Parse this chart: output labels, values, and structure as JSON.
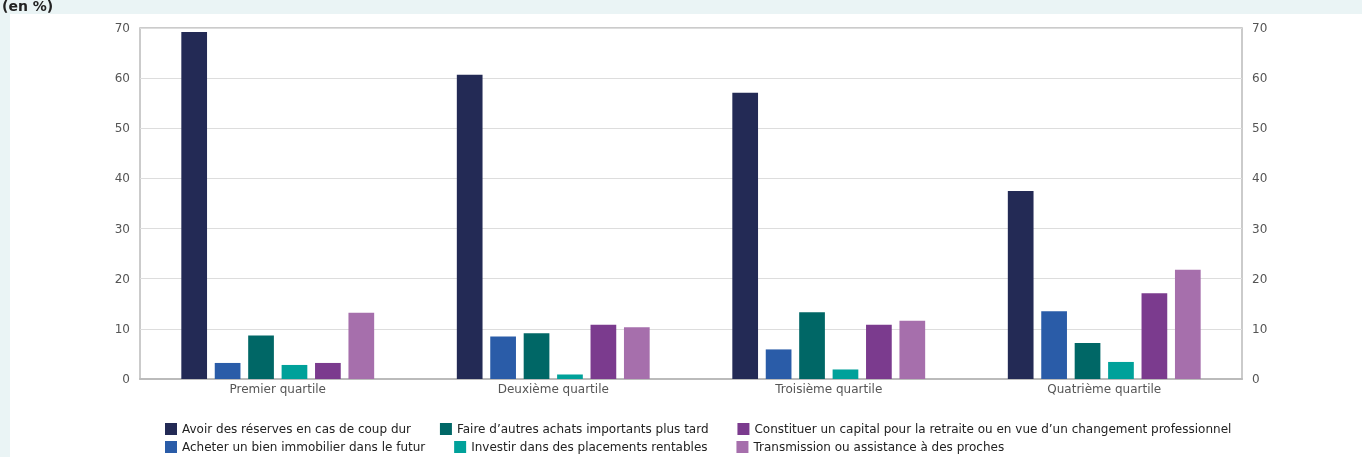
{
  "chart_data": {
    "type": "bar",
    "ylabel": "(en %)",
    "categories": [
      "Premier quartile",
      "Deuxième quartile",
      "Troisième quartile",
      "Quatrième quartile"
    ],
    "series": [
      {
        "name": "Avoir des réserves en cas de coup dur",
        "color": "#232a55",
        "values": [
          69.2,
          60.7,
          57.1,
          37.5
        ]
      },
      {
        "name": "Acheter un bien immobilier dans le futur",
        "color": "#2a5ca8",
        "values": [
          3.2,
          8.5,
          5.9,
          13.5
        ]
      },
      {
        "name": "Faire d’autres achats importants plus tard",
        "color": "#006766",
        "values": [
          8.7,
          9.1,
          13.3,
          7.2
        ]
      },
      {
        "name": "Investir dans des placements rentables",
        "color": "#00a19a",
        "values": [
          2.8,
          0.9,
          1.9,
          3.4
        ]
      },
      {
        "name": "Constituer un capital pour la retraite ou en vue d’un changement professionnel",
        "color": "#7b3b8e",
        "values": [
          3.2,
          10.8,
          10.8,
          17.1
        ]
      },
      {
        "name": "Transmission ou assistance à des proches",
        "color": "#a66fac",
        "values": [
          13.2,
          10.3,
          11.6,
          21.8
        ]
      }
    ],
    "ylim": [
      0,
      70
    ],
    "yticks": [
      0,
      10,
      20,
      30,
      40,
      50,
      60,
      70
    ],
    "y2lim": [
      0,
      70
    ],
    "y2ticks": [
      0,
      10,
      20,
      30,
      40,
      50,
      60,
      70
    ],
    "grid": "y",
    "legend": "bottom"
  }
}
